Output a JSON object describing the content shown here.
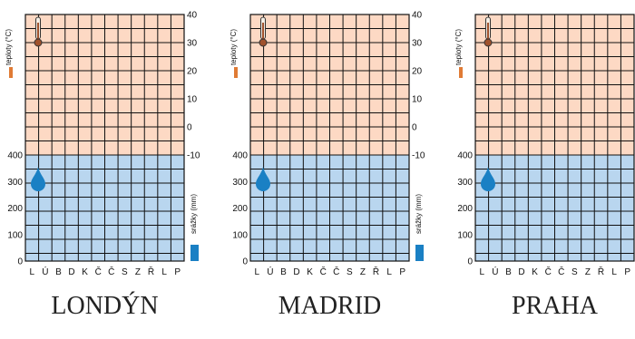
{
  "colors": {
    "temp_band": "#fdd9c4",
    "precip_band": "#b9d6ef",
    "grid": "#111111",
    "thermometer_bulb": "#a0522d",
    "temp_key": "#e07b35",
    "drop": "#1a80c4",
    "precip_key": "#1a80c4"
  },
  "icons": {
    "thermometer": "thermometer-icon",
    "drop": "water-drop-icon"
  },
  "chart_data": [
    {
      "type": "bar",
      "title": "LONDÝN",
      "categories": [
        "L",
        "Ú",
        "B",
        "D",
        "K",
        "Č",
        "Č",
        "S",
        "Z",
        "Ř",
        "L",
        "P"
      ],
      "temperature": {
        "label": "teploty (°C)",
        "ylim": [
          -10,
          40
        ],
        "ticks": [
          -10,
          0,
          10,
          20,
          30,
          40
        ],
        "values": []
      },
      "precipitation": {
        "label": "srážky (mm)",
        "ylim": [
          0,
          400
        ],
        "ticks": [
          0,
          100,
          200,
          300,
          400
        ],
        "values": []
      },
      "grid": true
    },
    {
      "type": "bar",
      "title": "MADRID",
      "categories": [
        "L",
        "Ú",
        "B",
        "D",
        "K",
        "Č",
        "Č",
        "S",
        "Z",
        "Ř",
        "L",
        "P"
      ],
      "temperature": {
        "label": "teploty (°C)",
        "ylim": [
          -10,
          40
        ],
        "ticks": [
          -10,
          0,
          10,
          20,
          30,
          40
        ],
        "values": []
      },
      "precipitation": {
        "label": "srážky (mm)",
        "ylim": [
          0,
          400
        ],
        "ticks": [
          0,
          100,
          200,
          300,
          400
        ],
        "values": []
      },
      "grid": true
    },
    {
      "type": "bar",
      "title": "PRAHA",
      "categories": [
        "L",
        "Ú",
        "B",
        "D",
        "K",
        "Č",
        "Č",
        "S",
        "Z",
        "Ř",
        "L",
        "P"
      ],
      "temperature": {
        "label": "teploty (°C)",
        "ylim": [
          -10,
          40
        ],
        "ticks": [
          -10,
          0,
          10,
          20,
          30,
          40
        ],
        "values": []
      },
      "precipitation": {
        "label": "srážky (mm)",
        "ylim": [
          0,
          400
        ],
        "ticks": [
          0,
          100,
          200,
          300,
          400
        ],
        "values": []
      },
      "grid": true
    }
  ]
}
